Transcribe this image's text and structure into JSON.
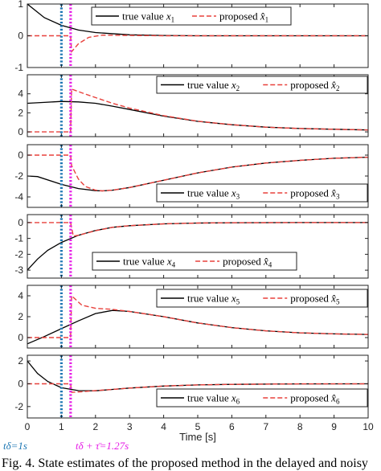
{
  "chart_data": [
    {
      "type": "line",
      "panel": 1,
      "xlim": [
        0,
        10
      ],
      "ylim": [
        -1,
        1
      ],
      "yticks": [
        -1,
        0,
        1
      ],
      "ytick_labels": [
        "-1",
        "0",
        "1"
      ],
      "grid": false,
      "legend_position": "top-right",
      "series": [
        {
          "name": "true value x_1",
          "x": [
            0,
            0.5,
            1,
            1.5,
            2,
            3,
            4,
            5,
            6,
            8,
            10
          ],
          "y": [
            1,
            0.57,
            0.33,
            0.18,
            0.1,
            0.03,
            0.01,
            0.0,
            0.0,
            0.0,
            0.0
          ]
        },
        {
          "name": "proposed x̂_1",
          "x": [
            0,
            1.27,
            1.3,
            1.5,
            1.8,
            2.2,
            3,
            4,
            6,
            10
          ],
          "y": [
            0,
            0,
            -0.5,
            -0.25,
            -0.05,
            0.02,
            0.01,
            0.0,
            0.0,
            0.0
          ]
        }
      ]
    },
    {
      "type": "line",
      "panel": 2,
      "xlim": [
        0,
        10
      ],
      "ylim": [
        -0.5,
        6
      ],
      "yticks": [
        0,
        2,
        4
      ],
      "ytick_labels": [
        "0",
        "2",
        "4"
      ],
      "grid": false,
      "legend_position": "top-right",
      "series": [
        {
          "name": "true value x_2",
          "x": [
            0,
            0.5,
            1,
            1.5,
            2,
            2.5,
            3,
            4,
            5,
            6,
            7,
            8,
            9,
            10
          ],
          "y": [
            3.0,
            3.1,
            3.2,
            3.15,
            3.0,
            2.7,
            2.35,
            1.65,
            1.1,
            0.75,
            0.5,
            0.35,
            0.28,
            0.2
          ]
        },
        {
          "name": "proposed x̂_2",
          "x": [
            0,
            1.27,
            1.3,
            1.6,
            2,
            2.5,
            3,
            4,
            5,
            6,
            7,
            8,
            9,
            10
          ],
          "y": [
            0,
            0,
            4.5,
            4.1,
            3.6,
            3.0,
            2.5,
            1.7,
            1.12,
            0.76,
            0.5,
            0.35,
            0.28,
            0.2
          ]
        }
      ]
    },
    {
      "type": "line",
      "panel": 3,
      "xlim": [
        0,
        10
      ],
      "ylim": [
        -5,
        1
      ],
      "yticks": [
        -4,
        -2,
        0
      ],
      "ytick_labels": [
        "-4",
        "-2",
        "0"
      ],
      "grid": false,
      "legend_position": "bottom-right",
      "series": [
        {
          "name": "true value x_3",
          "x": [
            0,
            0.3,
            1,
            1.5,
            2,
            2.2,
            2.5,
            3,
            4,
            5,
            6,
            7,
            8,
            9,
            10
          ],
          "y": [
            -2.0,
            -2.05,
            -2.8,
            -3.2,
            -3.4,
            -3.42,
            -3.35,
            -3.1,
            -2.4,
            -1.7,
            -1.15,
            -0.75,
            -0.5,
            -0.3,
            -0.2
          ]
        },
        {
          "name": "proposed x̂_3",
          "x": [
            0,
            1.27,
            1.3,
            1.5,
            1.7,
            2,
            2.2,
            2.5,
            3,
            4,
            5,
            6,
            7,
            8,
            9,
            10
          ],
          "y": [
            0,
            0,
            -1.0,
            -2.3,
            -3.0,
            -3.35,
            -3.42,
            -3.35,
            -3.1,
            -2.4,
            -1.7,
            -1.15,
            -0.75,
            -0.5,
            -0.3,
            -0.2
          ]
        }
      ]
    },
    {
      "type": "line",
      "panel": 4,
      "xlim": [
        0,
        10
      ],
      "ylim": [
        -3.5,
        0.5
      ],
      "yticks": [
        -3,
        -2,
        -1,
        0
      ],
      "ytick_labels": [
        "-3",
        "-2",
        "-1",
        "0"
      ],
      "grid": false,
      "legend_position": "bottom-right",
      "series": [
        {
          "name": "true value x_4",
          "x": [
            0,
            0.3,
            0.6,
            1,
            1.5,
            2,
            2.5,
            3,
            4,
            5,
            6,
            8,
            10
          ],
          "y": [
            -3.0,
            -2.3,
            -1.75,
            -1.25,
            -0.8,
            -0.5,
            -0.3,
            -0.2,
            -0.08,
            -0.03,
            -0.01,
            0.0,
            0.0
          ]
        },
        {
          "name": "proposed x̂_4",
          "x": [
            0,
            1.27,
            1.35,
            1.5,
            2,
            2.5,
            3,
            4,
            5,
            6,
            8,
            10
          ],
          "y": [
            0,
            0,
            -0.85,
            -0.8,
            -0.52,
            -0.3,
            -0.2,
            -0.08,
            -0.03,
            -0.01,
            0.0,
            0.0
          ]
        }
      ]
    },
    {
      "type": "line",
      "panel": 5,
      "xlim": [
        0,
        10
      ],
      "ylim": [
        -1,
        5
      ],
      "yticks": [
        0,
        2,
        4
      ],
      "ytick_labels": [
        "0",
        "2",
        "4"
      ],
      "grid": false,
      "legend_position": "top-right",
      "series": [
        {
          "name": "true value x_5",
          "x": [
            0,
            0.5,
            1,
            1.5,
            2,
            2.5,
            3,
            4,
            5,
            6,
            7,
            8,
            9,
            10
          ],
          "y": [
            -0.6,
            0.1,
            0.85,
            1.6,
            2.3,
            2.6,
            2.5,
            2.0,
            1.4,
            0.95,
            0.65,
            0.45,
            0.35,
            0.3
          ]
        },
        {
          "name": "proposed x̂_5",
          "x": [
            0,
            1.27,
            1.3,
            1.6,
            2,
            2.5,
            3,
            4,
            5,
            6,
            7,
            8,
            9,
            10
          ],
          "y": [
            0,
            0,
            4.0,
            3.1,
            2.8,
            2.7,
            2.5,
            2.0,
            1.4,
            0.95,
            0.65,
            0.45,
            0.35,
            0.3
          ]
        }
      ]
    },
    {
      "type": "line",
      "panel": 6,
      "xlim": [
        0,
        10
      ],
      "ylim": [
        -3,
        2.5
      ],
      "yticks": [
        -2,
        0,
        2
      ],
      "ytick_labels": [
        "-2",
        "0",
        "2"
      ],
      "grid": false,
      "legend_position": "bottom-right",
      "xticks": [
        0,
        1,
        2,
        3,
        4,
        5,
        6,
        7,
        8,
        9,
        10
      ],
      "xtick_labels": [
        "0",
        "1",
        "2",
        "3",
        "4",
        "5",
        "6",
        "7",
        "8",
        "9",
        "10"
      ],
      "xlabel": "Time [s]",
      "series": [
        {
          "name": "true value x_6",
          "x": [
            0,
            0.3,
            0.6,
            1,
            1.5,
            2,
            2.5,
            3,
            4,
            5,
            6,
            8,
            10
          ],
          "y": [
            2.0,
            0.9,
            0.2,
            -0.35,
            -0.6,
            -0.62,
            -0.5,
            -0.38,
            -0.2,
            -0.1,
            -0.05,
            -0.01,
            0.0
          ]
        },
        {
          "name": "proposed x̂_6",
          "x": [
            0,
            1.27,
            1.3,
            1.6,
            2,
            2.5,
            3,
            4,
            5,
            6,
            8,
            10
          ],
          "y": [
            0,
            0,
            -0.75,
            -0.7,
            -0.6,
            -0.5,
            -0.38,
            -0.2,
            -0.1,
            -0.05,
            -0.01,
            0.0
          ]
        }
      ]
    }
  ],
  "legends": [
    {
      "true": "true value",
      "true_var": "x",
      "true_sub": "1",
      "est": "proposed",
      "est_var": "x̂",
      "est_sub": "1"
    },
    {
      "true": "true value",
      "true_var": "x",
      "true_sub": "2",
      "est": "proposed",
      "est_var": "x̂",
      "est_sub": "2"
    },
    {
      "true": "true value",
      "true_var": "x",
      "true_sub": "3",
      "est": "proposed",
      "est_var": "x̂",
      "est_sub": "3"
    },
    {
      "true": "true value",
      "true_var": "x",
      "true_sub": "4",
      "est": "proposed",
      "est_var": "x̂",
      "est_sub": "4"
    },
    {
      "true": "true value",
      "true_var": "x",
      "true_sub": "5",
      "est": "proposed",
      "est_var": "x̂",
      "est_sub": "5"
    },
    {
      "true": "true value",
      "true_var": "x",
      "true_sub": "6",
      "est": "proposed",
      "est_var": "x̂",
      "est_sub": "6"
    }
  ],
  "markers": [
    {
      "x": 1.0,
      "label": "t_δ=1s",
      "label_text": "tδ=1s",
      "color": "#1f78b4",
      "style": "dotted"
    },
    {
      "x": 1.27,
      "label": "t_δ + τ̄=1.27s",
      "label_text": "tδ + τ̄=1.27s",
      "color": "#e61ee6",
      "style": "dotted"
    }
  ],
  "colors": {
    "true": "#000000",
    "estimate": "#e8413c",
    "marker1": "#1f78b4",
    "marker2": "#e61ee6"
  },
  "caption": "Fig. 4.   State estimates of the proposed method in the delayed and noisy"
}
